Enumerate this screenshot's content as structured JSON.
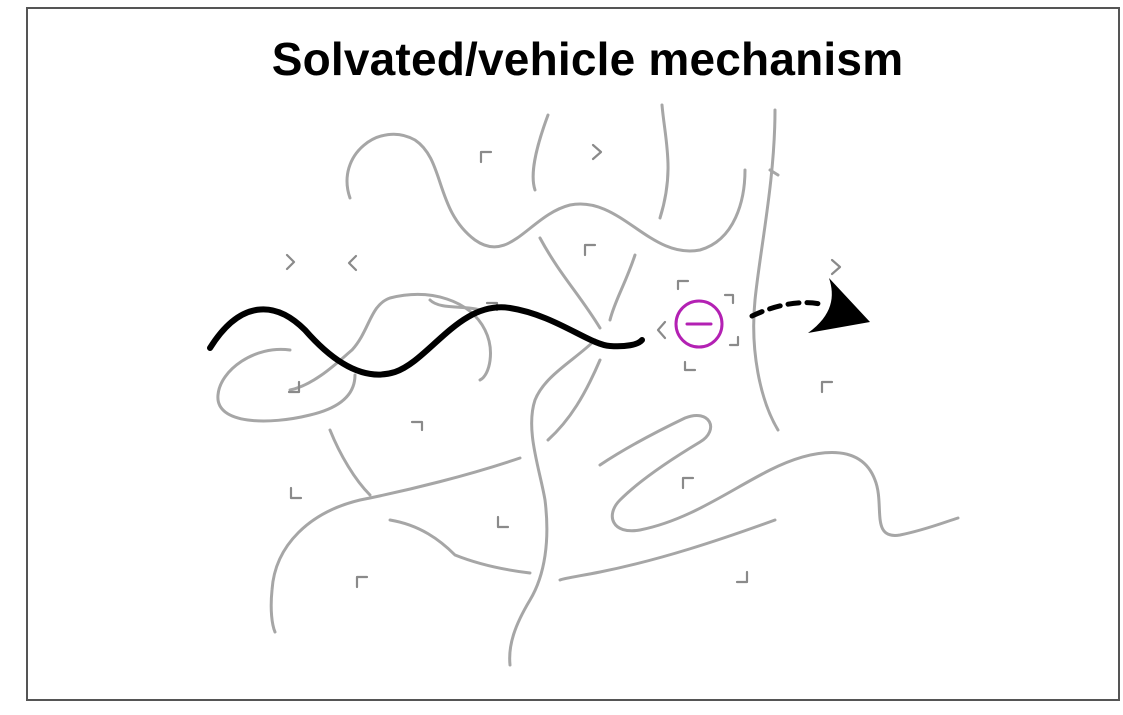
{
  "title": "Solvated/vehicle mechanism",
  "colors": {
    "polymer": "#a6a6a6",
    "solvent": "#8a8a8a",
    "highlight_chain": "#000000",
    "anion": "#b321b3",
    "arrow": "#000000",
    "frame": "#555555"
  },
  "elements": {
    "anion": "anion-minus-icon",
    "arrow": "dashed-arrow-icon"
  }
}
